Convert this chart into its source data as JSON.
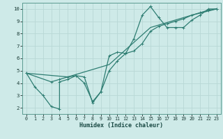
{
  "xlabel": "Humidex (Indice chaleur)",
  "bg_color": "#ceeae8",
  "grid_color": "#b8d8d5",
  "line_color": "#2e7d72",
  "xlim": [
    -0.5,
    23.5
  ],
  "ylim": [
    1.5,
    10.5
  ],
  "xticks": [
    0,
    1,
    2,
    3,
    4,
    5,
    6,
    7,
    8,
    9,
    10,
    11,
    12,
    13,
    14,
    15,
    16,
    17,
    18,
    19,
    20,
    21,
    22,
    23
  ],
  "yticks": [
    2,
    3,
    4,
    5,
    6,
    7,
    8,
    9,
    10
  ],
  "series1_x": [
    0,
    1,
    2,
    3,
    4,
    4,
    5,
    6,
    7,
    8,
    9,
    10,
    11,
    12,
    13,
    14,
    15,
    15,
    16,
    17,
    18,
    19,
    20,
    21,
    22,
    23
  ],
  "series1_y": [
    4.8,
    3.7,
    3.0,
    2.1,
    1.9,
    4.1,
    4.3,
    4.6,
    4.0,
    2.5,
    3.3,
    6.2,
    6.5,
    6.4,
    7.6,
    9.5,
    10.2,
    10.2,
    9.3,
    8.5,
    8.5,
    8.5,
    9.1,
    9.5,
    10.0,
    10.0
  ],
  "series2_x": [
    0,
    3,
    4,
    5,
    6,
    7,
    8,
    9,
    10,
    11,
    12,
    13,
    14,
    15,
    16,
    17,
    18,
    19,
    20,
    21,
    22,
    23
  ],
  "series2_y": [
    4.8,
    4.1,
    4.3,
    4.5,
    4.6,
    4.5,
    2.4,
    3.3,
    5.0,
    5.8,
    6.4,
    6.6,
    7.2,
    8.2,
    8.6,
    8.8,
    9.0,
    9.2,
    9.5,
    9.7,
    9.9,
    10.0
  ],
  "series3_x": [
    0,
    5,
    10,
    15,
    20,
    23
  ],
  "series3_y": [
    4.8,
    4.5,
    5.5,
    8.5,
    9.5,
    10.0
  ]
}
